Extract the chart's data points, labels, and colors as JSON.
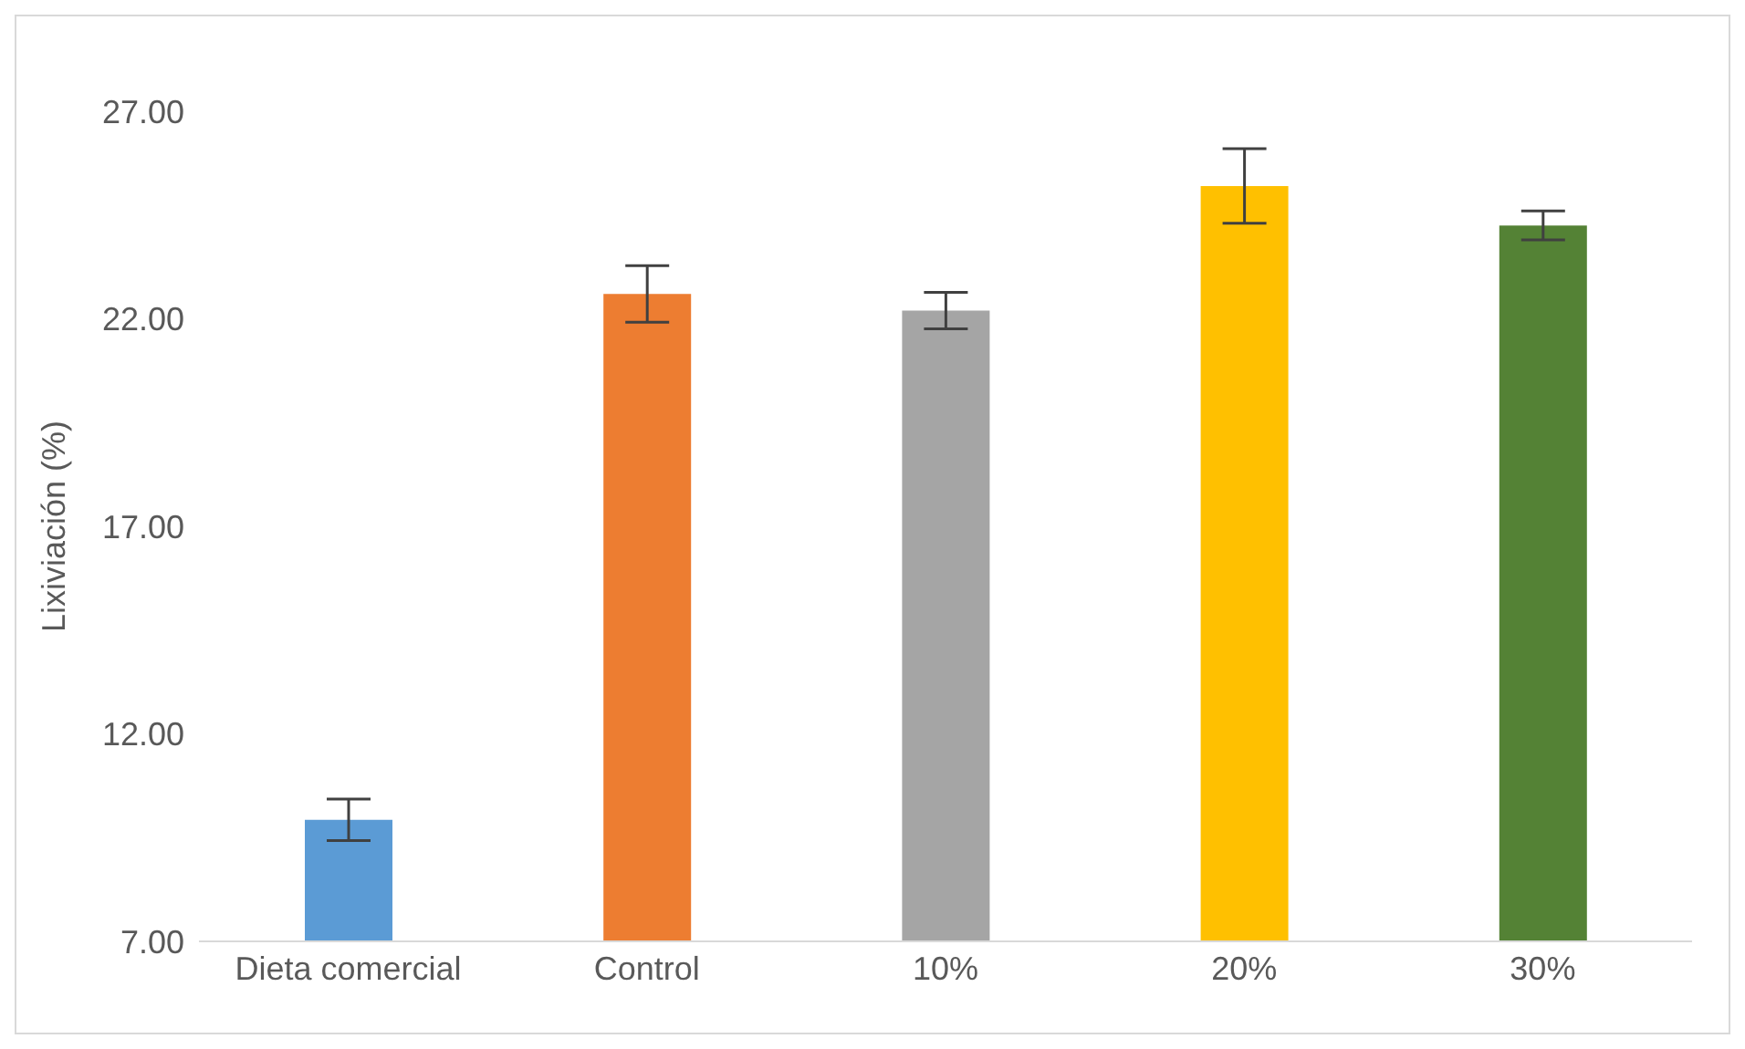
{
  "chart_data": {
    "type": "bar",
    "ylabel": "Lixiviación (%)",
    "categories": [
      "Dieta comercial",
      "Control",
      "10%",
      "20%",
      "30%"
    ],
    "values": [
      9.93,
      22.6,
      22.2,
      25.2,
      24.25
    ],
    "errors": [
      0.5,
      0.68,
      0.44,
      0.9,
      0.35
    ],
    "colors": [
      "#5b9bd5",
      "#ed7d31",
      "#a5a5a5",
      "#ffc000",
      "#548235"
    ],
    "ylim": [
      7,
      27
    ],
    "yticks": [
      {
        "value": 7,
        "label": "7.00"
      },
      {
        "value": 12,
        "label": "12.00"
      },
      {
        "value": 17,
        "label": "17.00"
      },
      {
        "value": 22,
        "label": "22.00"
      },
      {
        "value": 27,
        "label": "27.00"
      }
    ],
    "grid": false,
    "legend": false
  }
}
